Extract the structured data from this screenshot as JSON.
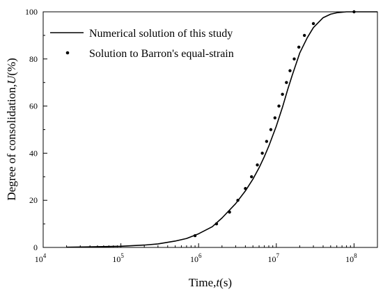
{
  "chart_data": {
    "type": "line",
    "xscale": "log",
    "xlim": [
      10000,
      200000000
    ],
    "ylim": [
      0,
      100
    ],
    "xlabel": {
      "main": "Time,",
      "var": "t",
      "unit": "(s)"
    },
    "ylabel": {
      "main": "Degree of consolidation,",
      "var": "U",
      "unit": "(%)"
    },
    "x_ticks": [
      {
        "base": "10",
        "exp": "4",
        "value": 10000
      },
      {
        "base": "10",
        "exp": "5",
        "value": 100000
      },
      {
        "base": "10",
        "exp": "6",
        "value": 1000000
      },
      {
        "base": "10",
        "exp": "7",
        "value": 10000000
      },
      {
        "base": "10",
        "exp": "8",
        "value": 100000000
      }
    ],
    "y_ticks": [
      {
        "label": "0",
        "value": 0
      },
      {
        "label": "20",
        "value": 20
      },
      {
        "label": "40",
        "value": 40
      },
      {
        "label": "60",
        "value": 60
      },
      {
        "label": "80",
        "value": 80
      },
      {
        "label": "100",
        "value": 100
      }
    ],
    "grid": false,
    "legend_position": "top-left",
    "series": [
      {
        "name": "Numerical solution of this study",
        "style": "line",
        "color": "#000000",
        "points": [
          [
            20000,
            0.1
          ],
          [
            50000,
            0.3
          ],
          [
            100000,
            0.5
          ],
          [
            200000,
            1.0
          ],
          [
            300000,
            1.5
          ],
          [
            500000,
            2.7
          ],
          [
            700000,
            3.8
          ],
          [
            1000000,
            5.8
          ],
          [
            1500000,
            8.8
          ],
          [
            2000000,
            12.5
          ],
          [
            3000000,
            18.6
          ],
          [
            4000000,
            24.0
          ],
          [
            5000000,
            29.0
          ],
          [
            6000000,
            33.8
          ],
          [
            7000000,
            38.5
          ],
          [
            8000000,
            43.0
          ],
          [
            9000000,
            47.5
          ],
          [
            10000000,
            51.5
          ],
          [
            12000000,
            59.5
          ],
          [
            14000000,
            67.0
          ],
          [
            16000000,
            73.0
          ],
          [
            18000000,
            78.0
          ],
          [
            20000000,
            82.5
          ],
          [
            25000000,
            89.0
          ],
          [
            30000000,
            93.3
          ],
          [
            40000000,
            97.5
          ],
          [
            50000000,
            99.0
          ],
          [
            60000000,
            99.6
          ],
          [
            80000000,
            100.0
          ],
          [
            200000000,
            100.0
          ]
        ]
      },
      {
        "name": "Solution to Barron's equal-strain",
        "style": "markers",
        "color": "#000000",
        "points": [
          [
            900000,
            5
          ],
          [
            1700000,
            10
          ],
          [
            2500000,
            15
          ],
          [
            3200000,
            20
          ],
          [
            4000000,
            25
          ],
          [
            4800000,
            30
          ],
          [
            5700000,
            35
          ],
          [
            6600000,
            40
          ],
          [
            7500000,
            45
          ],
          [
            8500000,
            50
          ],
          [
            9600000,
            55
          ],
          [
            10800000,
            60
          ],
          [
            12000000,
            65
          ],
          [
            13500000,
            70
          ],
          [
            15000000,
            75
          ],
          [
            17000000,
            80
          ],
          [
            19500000,
            85
          ],
          [
            23000000,
            90
          ],
          [
            30000000,
            95
          ],
          [
            100000000,
            100
          ]
        ]
      }
    ]
  }
}
